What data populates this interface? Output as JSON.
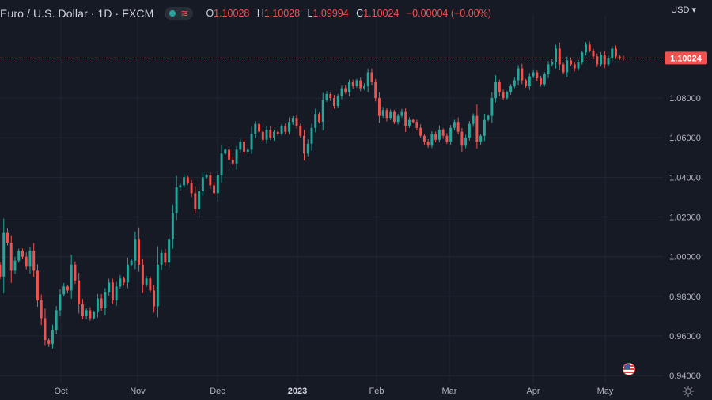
{
  "legend": {
    "title": "Euro / U.S. Dollar · 1D · FXCM",
    "open_key": "O",
    "open": "1.10028",
    "high_key": "H",
    "high": "1.10028",
    "low_key": "L",
    "low": "1.09994",
    "close_key": "C",
    "close": "1.10024",
    "change": "−0.00004 (−0.00%)"
  },
  "currency": "USD",
  "icons": {
    "status": "status-dot-icon",
    "wave": "wave-icon",
    "flags": "us-flag-icon",
    "settings": "gear-icon"
  },
  "colors": {
    "background": "#161a25",
    "up": "#26a69a",
    "down": "#ef5350",
    "grid": "#232733",
    "axis_text": "#b2b5be"
  },
  "chart_data": {
    "type": "candlestick",
    "title": "Euro / U.S. Dollar · 1D · FXCM",
    "y_ticks": [
      "0.94000",
      "0.96000",
      "0.98000",
      "1.00000",
      "1.02000",
      "1.04000",
      "1.06000",
      "1.08000"
    ],
    "ylim": [
      0.9365,
      1.1215
    ],
    "x_ticks": [
      "Oct",
      "Nov",
      "Dec",
      "2023",
      "Feb",
      "Mar",
      "Apr",
      "May"
    ],
    "current_price": 1.10024,
    "current_price_label": "1.10024",
    "candles": [
      [
        0.996,
        0.99
      ],
      [
        0.99,
        1.012
      ],
      [
        1.012,
        1.007
      ],
      [
        1.007,
        0.993
      ],
      [
        0.993,
        0.998
      ],
      [
        0.998,
        1.003
      ],
      [
        1.003,
        1.0
      ],
      [
        1.0,
        0.995
      ],
      [
        0.995,
        1.003
      ],
      [
        1.003,
        0.993
      ],
      [
        0.993,
        0.978
      ],
      [
        0.978,
        0.969
      ],
      [
        0.969,
        0.958
      ],
      [
        0.958,
        0.956
      ],
      [
        0.956,
        0.963
      ],
      [
        0.963,
        0.973
      ],
      [
        0.973,
        0.981
      ],
      [
        0.981,
        0.985
      ],
      [
        0.985,
        0.983
      ],
      [
        0.983,
        0.996
      ],
      [
        0.996,
        0.988
      ],
      [
        0.988,
        0.976
      ],
      [
        0.976,
        0.97
      ],
      [
        0.97,
        0.973
      ],
      [
        0.973,
        0.969
      ],
      [
        0.969,
        0.972
      ],
      [
        0.972,
        0.979
      ],
      [
        0.979,
        0.974
      ],
      [
        0.974,
        0.982
      ],
      [
        0.982,
        0.987
      ],
      [
        0.987,
        0.978
      ],
      [
        0.978,
        0.985
      ],
      [
        0.985,
        0.989
      ],
      [
        0.989,
        0.987
      ],
      [
        0.987,
        0.996
      ],
      [
        0.996,
        0.998
      ],
      [
        0.998,
        1.009
      ],
      [
        1.009,
        0.996
      ],
      [
        0.996,
        0.986
      ],
      [
        0.986,
        0.989
      ],
      [
        0.989,
        0.983
      ],
      [
        0.983,
        0.975
      ],
      [
        0.975,
        0.996
      ],
      [
        0.996,
        1.002
      ],
      [
        1.002,
        0.997
      ],
      [
        0.997,
        1.009
      ],
      [
        1.009,
        1.022
      ],
      [
        1.022,
        1.035
      ],
      [
        1.035,
        1.036
      ],
      [
        1.036,
        1.04
      ],
      [
        1.04,
        1.037
      ],
      [
        1.037,
        1.032
      ],
      [
        1.032,
        1.024
      ],
      [
        1.024,
        1.033
      ],
      [
        1.033,
        1.04
      ],
      [
        1.04,
        1.041
      ],
      [
        1.041,
        1.036
      ],
      [
        1.036,
        1.032
      ],
      [
        1.032,
        1.041
      ],
      [
        1.041,
        1.052
      ],
      [
        1.052,
        1.054
      ],
      [
        1.054,
        1.049
      ],
      [
        1.049,
        1.047
      ],
      [
        1.047,
        1.054
      ],
      [
        1.054,
        1.058
      ],
      [
        1.058,
        1.053
      ],
      [
        1.053,
        1.054
      ],
      [
        1.054,
        1.062
      ],
      [
        1.062,
        1.067
      ],
      [
        1.067,
        1.063
      ],
      [
        1.063,
        1.059
      ],
      [
        1.059,
        1.064
      ],
      [
        1.064,
        1.06
      ],
      [
        1.06,
        1.063
      ],
      [
        1.063,
        1.062
      ],
      [
        1.062,
        1.066
      ],
      [
        1.066,
        1.063
      ],
      [
        1.063,
        1.068
      ],
      [
        1.068,
        1.07
      ],
      [
        1.07,
        1.066
      ],
      [
        1.066,
        1.061
      ],
      [
        1.061,
        1.052
      ],
      [
        1.052,
        1.057
      ],
      [
        1.057,
        1.065
      ],
      [
        1.065,
        1.072
      ],
      [
        1.072,
        1.068
      ],
      [
        1.068,
        1.079
      ],
      [
        1.079,
        1.082
      ],
      [
        1.082,
        1.08
      ],
      [
        1.08,
        1.076
      ],
      [
        1.076,
        1.081
      ],
      [
        1.081,
        1.085
      ],
      [
        1.085,
        1.083
      ],
      [
        1.083,
        1.088
      ],
      [
        1.088,
        1.086
      ],
      [
        1.086,
        1.089
      ],
      [
        1.089,
        1.085
      ],
      [
        1.085,
        1.086
      ],
      [
        1.086,
        1.093
      ],
      [
        1.093,
        1.088
      ],
      [
        1.088,
        1.08
      ],
      [
        1.08,
        1.071
      ],
      [
        1.071,
        1.074
      ],
      [
        1.074,
        1.07
      ],
      [
        1.07,
        1.073
      ],
      [
        1.073,
        1.068
      ],
      [
        1.068,
        1.071
      ],
      [
        1.071,
        1.073
      ],
      [
        1.073,
        1.066
      ],
      [
        1.066,
        1.069
      ],
      [
        1.069,
        1.068
      ],
      [
        1.068,
        1.065
      ],
      [
        1.065,
        1.061
      ],
      [
        1.061,
        1.058
      ],
      [
        1.058,
        1.056
      ],
      [
        1.056,
        1.062
      ],
      [
        1.062,
        1.059
      ],
      [
        1.059,
        1.064
      ],
      [
        1.064,
        1.061
      ],
      [
        1.061,
        1.058
      ],
      [
        1.058,
        1.065
      ],
      [
        1.065,
        1.068
      ],
      [
        1.068,
        1.063
      ],
      [
        1.063,
        1.056
      ],
      [
        1.056,
        1.06
      ],
      [
        1.06,
        1.067
      ],
      [
        1.067,
        1.071
      ],
      [
        1.071,
        1.058
      ],
      [
        1.058,
        1.061
      ],
      [
        1.061,
        1.069
      ],
      [
        1.069,
        1.071
      ],
      [
        1.071,
        1.08
      ],
      [
        1.08,
        1.088
      ],
      [
        1.088,
        1.083
      ],
      [
        1.083,
        1.08
      ],
      [
        1.08,
        1.083
      ],
      [
        1.083,
        1.086
      ],
      [
        1.086,
        1.089
      ],
      [
        1.089,
        1.095
      ],
      [
        1.095,
        1.089
      ],
      [
        1.089,
        1.086
      ],
      [
        1.086,
        1.091
      ],
      [
        1.091,
        1.093
      ],
      [
        1.093,
        1.09
      ],
      [
        1.09,
        1.087
      ],
      [
        1.087,
        1.092
      ],
      [
        1.092,
        1.097
      ],
      [
        1.097,
        1.098
      ],
      [
        1.098,
        1.105
      ],
      [
        1.105,
        1.097
      ],
      [
        1.097,
        1.093
      ],
      [
        1.093,
        1.099
      ],
      [
        1.099,
        1.097
      ],
      [
        1.097,
        1.095
      ],
      [
        1.095,
        1.098
      ],
      [
        1.098,
        1.103
      ],
      [
        1.103,
        1.107
      ],
      [
        1.107,
        1.104
      ],
      [
        1.104,
        1.101
      ],
      [
        1.101,
        1.097
      ],
      [
        1.097,
        1.102
      ],
      [
        1.102,
        1.097
      ],
      [
        1.097,
        1.1
      ],
      [
        1.1,
        1.105
      ],
      [
        1.105,
        1.101
      ],
      [
        1.101,
        1.0999
      ],
      [
        1.10028,
        1.10024
      ]
    ]
  }
}
